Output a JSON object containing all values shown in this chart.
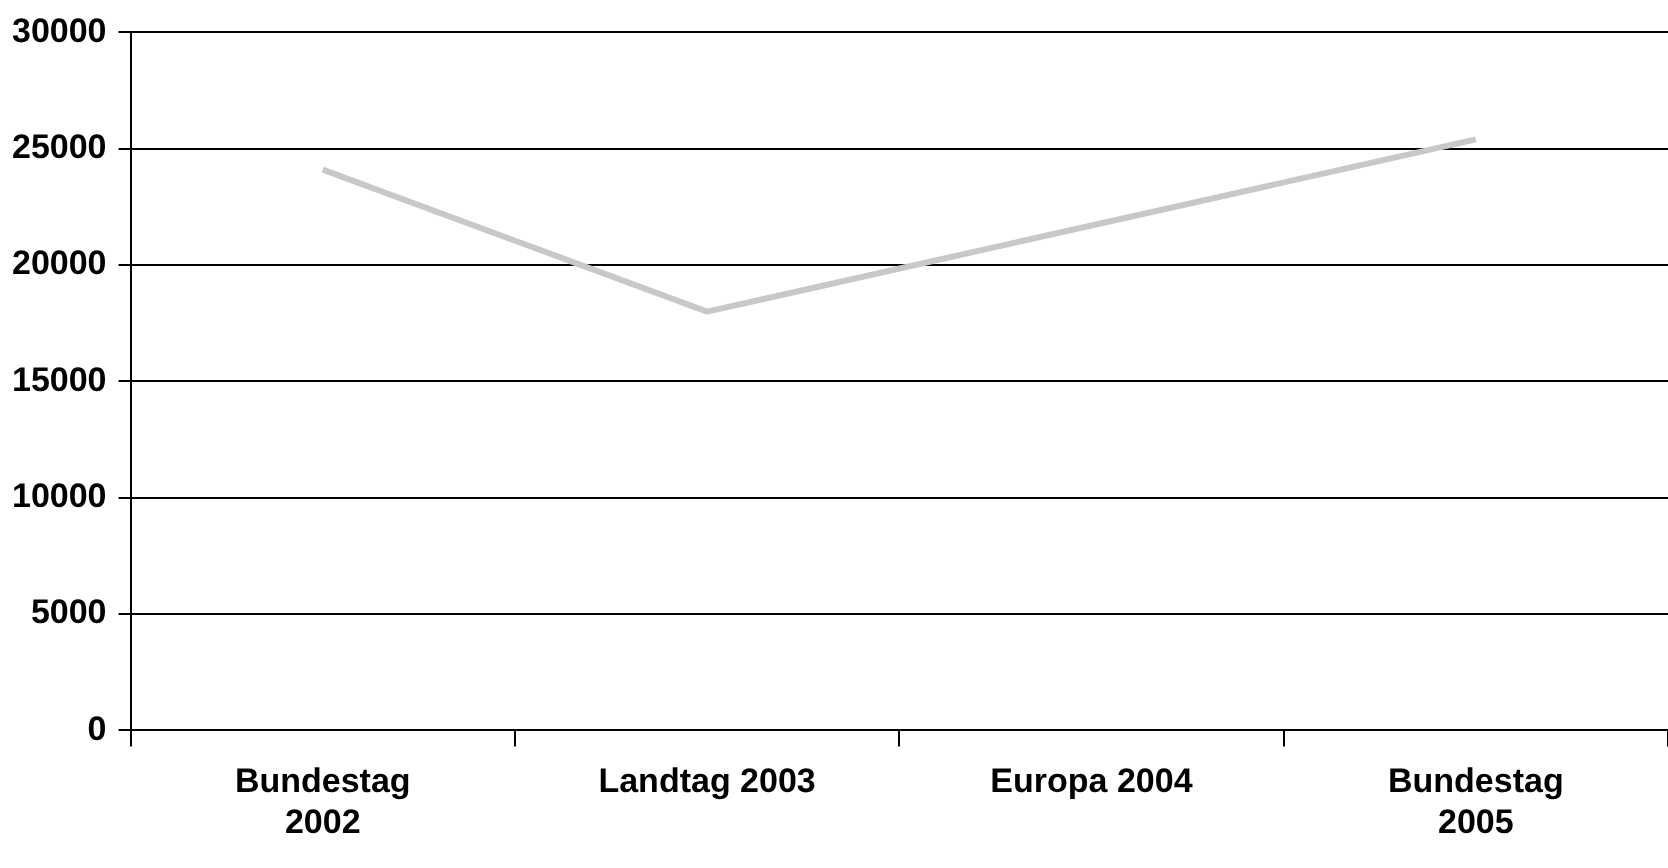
{
  "chart_data": {
    "type": "line",
    "categories": [
      "Bundestag 2002",
      "Landtag 2003",
      "Europa 2004",
      "Bundestag 2005"
    ],
    "series": [
      {
        "color": "#c8c8c8",
        "values": [
          24100,
          18000,
          21700,
          25400
        ]
      }
    ],
    "ylim": [
      0,
      30000
    ],
    "yticks": [
      0,
      5000,
      10000,
      15000,
      20000,
      25000,
      30000
    ],
    "grid": "y",
    "legend": false,
    "marker": "none",
    "line_style": "solid"
  }
}
